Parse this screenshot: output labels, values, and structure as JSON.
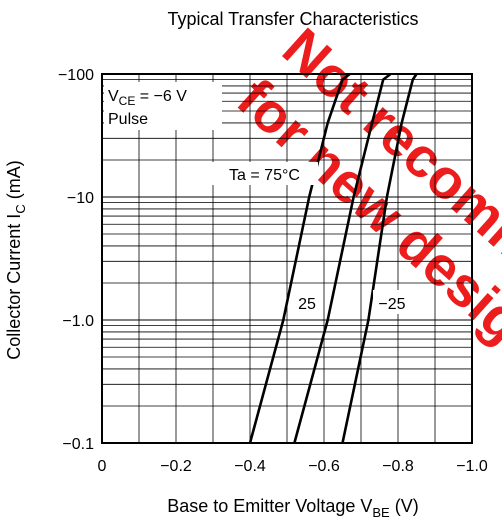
{
  "chart_data": {
    "type": "line",
    "title": "Typical Transfer Characteristics",
    "xlabel": "Base to Emitter Voltage",
    "xlabel_symbol": "V",
    "xlabel_sub": "BE",
    "xlabel_unit": "(V)",
    "ylabel": "Collector Current",
    "ylabel_symbol": "I",
    "ylabel_sub": "C",
    "ylabel_unit": "(mA)",
    "xlim": [
      0,
      -1.0
    ],
    "ylim": [
      -0.1,
      -100
    ],
    "y_scale": "log",
    "grid": true,
    "x_ticks": [
      {
        "value": 0,
        "label": "0"
      },
      {
        "value": -0.2,
        "label": "−0.2"
      },
      {
        "value": -0.4,
        "label": "−0.4"
      },
      {
        "value": -0.6,
        "label": "−0.6"
      },
      {
        "value": -0.8,
        "label": "−0.8"
      },
      {
        "value": -1.0,
        "label": "−1.0"
      }
    ],
    "y_ticks": [
      {
        "value": -0.1,
        "label": "−0.1"
      },
      {
        "value": -1.0,
        "label": "−1.0"
      },
      {
        "value": -10,
        "label": "−10"
      },
      {
        "value": -100,
        "label": "−100"
      }
    ],
    "condition": {
      "symbol": "V",
      "sub": "CE",
      "rest": " = −6 V",
      "mode": "Pulse"
    },
    "series": [
      {
        "name": "Ta = 75°C",
        "x": [
          -0.4,
          -0.49,
          -0.56,
          -0.61,
          -0.65,
          -0.67
        ],
        "y": [
          -0.1,
          -1.0,
          -10,
          -40,
          -90,
          -100
        ]
      },
      {
        "name": "25",
        "x": [
          -0.52,
          -0.61,
          -0.68,
          -0.73,
          -0.76,
          -0.78
        ],
        "y": [
          -0.1,
          -1.0,
          -10,
          -40,
          -90,
          -100
        ]
      },
      {
        "name": "−25",
        "x": [
          -0.65,
          -0.72,
          -0.77,
          -0.81,
          -0.84,
          -0.85
        ],
        "y": [
          -0.1,
          -1.0,
          -10,
          -40,
          -90,
          -100
        ]
      }
    ]
  },
  "watermark": {
    "line1": "Not recommended",
    "line2": "for new design",
    "color": "#ee1111"
  }
}
